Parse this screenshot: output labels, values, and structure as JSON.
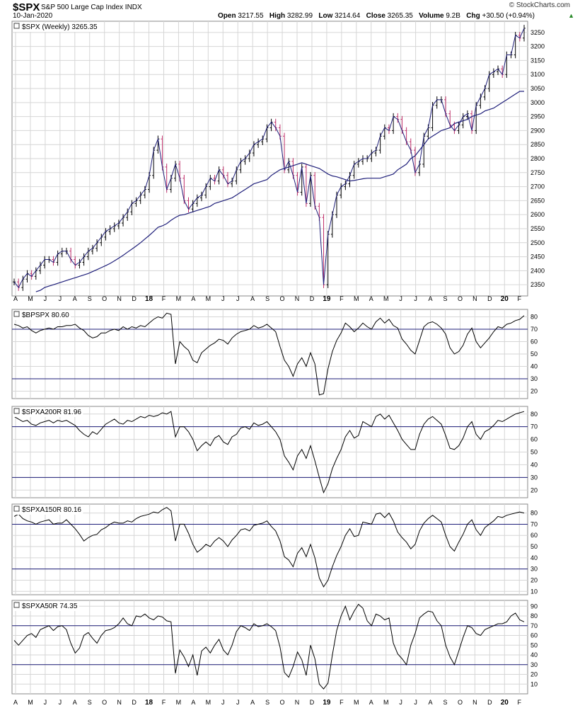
{
  "header": {
    "symbol": "$SPX",
    "index_name": "S&P 500 Large Cap Index INDX",
    "date": "10-Jan-2020",
    "open_label": "Open",
    "open": "3217.55",
    "high_label": "High",
    "high": "3282.99",
    "low_label": "Low",
    "low": "3214.64",
    "close_label": "Close",
    "close": "3265.35",
    "volume_label": "Volume",
    "volume": "9.2B",
    "chg_label": "Chg",
    "chg": "+30.50 (+0.94%)",
    "brand": "© StockCharts.com",
    "up_marker": "▲"
  },
  "colors": {
    "grid": "#d6d6d6",
    "up_bar": "#000000",
    "down_bar": "#c0306a",
    "close_line": "#1f1f7a",
    "ma": "#1f1f7a",
    "ref_line": "#1f1f7a",
    "indicator": "#000000"
  },
  "chart_data": [
    {
      "type": "line",
      "title": "$SPX (Weekly) 3265.35",
      "series": [
        {
          "name": "$SPX (Weekly)",
          "values": [
            2360,
            2340,
            2370,
            2390,
            2380,
            2400,
            2420,
            2440,
            2440,
            2430,
            2460,
            2470,
            2470,
            2440,
            2420,
            2430,
            2450,
            2470,
            2480,
            2500,
            2520,
            2540,
            2550,
            2560,
            2570,
            2590,
            2610,
            2640,
            2650,
            2670,
            2690,
            2740,
            2830,
            2870,
            2770,
            2690,
            2730,
            2780,
            2730,
            2650,
            2620,
            2640,
            2660,
            2670,
            2700,
            2730,
            2720,
            2760,
            2740,
            2710,
            2720,
            2760,
            2790,
            2800,
            2820,
            2850,
            2860,
            2870,
            2910,
            2930,
            2910,
            2880,
            2760,
            2790,
            2740,
            2680,
            2770,
            2640,
            2740,
            2630,
            2590,
            2350,
            2530,
            2600,
            2670,
            2700,
            2710,
            2740,
            2780,
            2790,
            2800,
            2800,
            2820,
            2830,
            2880,
            2910,
            2900,
            2950,
            2940,
            2900,
            2860,
            2830,
            2750,
            2780,
            2880,
            2910,
            2990,
            3010,
            3010,
            2960,
            2920,
            2900,
            2920,
            2950,
            2960,
            2900,
            2990,
            3020,
            3050,
            3100,
            3110,
            3120,
            3100,
            3170,
            3170,
            3240,
            3230,
            3265
          ]
        },
        {
          "name": "MA",
          "values": [
            2280,
            2290,
            2300,
            2310,
            2320,
            2325,
            2330,
            2340,
            2345,
            2350,
            2355,
            2360,
            2365,
            2370,
            2375,
            2380,
            2385,
            2390,
            2397,
            2404,
            2411,
            2418,
            2426,
            2435,
            2445,
            2455,
            2466,
            2477,
            2488,
            2500,
            2513,
            2526,
            2540,
            2555,
            2560,
            2568,
            2580,
            2590,
            2598,
            2600,
            2605,
            2610,
            2615,
            2620,
            2625,
            2630,
            2640,
            2645,
            2650,
            2655,
            2660,
            2670,
            2680,
            2690,
            2700,
            2710,
            2715,
            2720,
            2725,
            2740,
            2750,
            2760,
            2765,
            2770,
            2775,
            2780,
            2785,
            2780,
            2775,
            2770,
            2765,
            2755,
            2745,
            2738,
            2735,
            2730,
            2725,
            2720,
            2722,
            2725,
            2728,
            2730,
            2730,
            2730,
            2730,
            2735,
            2740,
            2745,
            2760,
            2770,
            2780,
            2800,
            2810,
            2830,
            2850,
            2870,
            2880,
            2890,
            2900,
            2905,
            2910,
            2925,
            2930,
            2935,
            2940,
            2950,
            2955,
            2960,
            2970,
            2975,
            2980,
            2990,
            3000,
            3010,
            3020,
            3030,
            3040,
            3040
          ]
        }
      ],
      "ylim": [
        2310,
        3290
      ],
      "yticks": [
        2350,
        2400,
        2450,
        2500,
        2550,
        2600,
        2650,
        2700,
        2750,
        2800,
        2850,
        2900,
        2950,
        3000,
        3050,
        3100,
        3150,
        3200,
        3250
      ]
    },
    {
      "type": "line",
      "title": "$BPSPX 80.60",
      "series": [
        {
          "name": "$BPSPX",
          "values": [
            74,
            73,
            71,
            72,
            69,
            67,
            69,
            70,
            71,
            70,
            72,
            72,
            73,
            73,
            74,
            71,
            69,
            65,
            63,
            64,
            67,
            67,
            69,
            70,
            69,
            72,
            70,
            72,
            71,
            73,
            72,
            75,
            78,
            80,
            79,
            83,
            82,
            42,
            60,
            56,
            53,
            45,
            43,
            51,
            54,
            57,
            59,
            62,
            61,
            58,
            63,
            66,
            68,
            69,
            70,
            73,
            71,
            72,
            74,
            71,
            68,
            56,
            45,
            40,
            32,
            42,
            47,
            40,
            51,
            42,
            17,
            18,
            38,
            52,
            61,
            67,
            75,
            72,
            68,
            71,
            75,
            72,
            70,
            76,
            79,
            75,
            78,
            73,
            71,
            62,
            58,
            53,
            50,
            61,
            72,
            75,
            76,
            74,
            71,
            66,
            55,
            50,
            52,
            57,
            66,
            71,
            60,
            55,
            59,
            63,
            68,
            72,
            71,
            74,
            75,
            77,
            78,
            81
          ]
        }
      ],
      "ylim": [
        14,
        86
      ],
      "yticks": [
        20,
        30,
        40,
        50,
        60,
        70,
        80
      ],
      "reference_lines": [
        70,
        30
      ]
    },
    {
      "type": "line",
      "title": "$SPXA200R 81.96",
      "series": [
        {
          "name": "$SPXA200R",
          "values": [
            78,
            76,
            74,
            75,
            72,
            71,
            73,
            74,
            75,
            73,
            75,
            74,
            75,
            73,
            71,
            67,
            64,
            62,
            66,
            64,
            68,
            72,
            74,
            76,
            73,
            72,
            75,
            74,
            76,
            78,
            77,
            79,
            78,
            79,
            81,
            80,
            82,
            62,
            70,
            70,
            66,
            60,
            51,
            55,
            58,
            55,
            61,
            63,
            58,
            56,
            62,
            64,
            69,
            70,
            68,
            73,
            71,
            72,
            74,
            70,
            66,
            60,
            47,
            42,
            36,
            47,
            52,
            45,
            55,
            43,
            30,
            18,
            25,
            37,
            45,
            52,
            62,
            67,
            61,
            63,
            74,
            72,
            70,
            78,
            80,
            76,
            79,
            73,
            67,
            60,
            56,
            52,
            52,
            64,
            72,
            76,
            78,
            75,
            72,
            63,
            53,
            52,
            55,
            61,
            70,
            74,
            64,
            60,
            66,
            68,
            71,
            75,
            74,
            76,
            78,
            80,
            81,
            82
          ]
        }
      ],
      "ylim": [
        14,
        86
      ],
      "yticks": [
        20,
        30,
        40,
        50,
        60,
        70,
        80
      ],
      "reference_lines": [
        70,
        30
      ]
    },
    {
      "type": "line",
      "title": "$SPXA150R 80.16",
      "series": [
        {
          "name": "$SPXA150R",
          "values": [
            77,
            79,
            75,
            73,
            72,
            70,
            72,
            73,
            74,
            70,
            71,
            71,
            74,
            70,
            66,
            61,
            55,
            58,
            60,
            61,
            65,
            67,
            70,
            72,
            71,
            71,
            73,
            72,
            75,
            77,
            78,
            79,
            81,
            80,
            83,
            85,
            82,
            55,
            70,
            70,
            62,
            52,
            45,
            48,
            52,
            50,
            55,
            58,
            55,
            50,
            56,
            60,
            65,
            66,
            64,
            69,
            70,
            71,
            73,
            68,
            64,
            55,
            41,
            38,
            32,
            44,
            49,
            41,
            52,
            40,
            22,
            14,
            20,
            32,
            42,
            50,
            60,
            66,
            59,
            60,
            72,
            71,
            70,
            79,
            80,
            76,
            80,
            73,
            63,
            58,
            54,
            48,
            52,
            64,
            71,
            75,
            78,
            75,
            72,
            60,
            50,
            46,
            54,
            61,
            70,
            74,
            65,
            60,
            67,
            70,
            73,
            77,
            76,
            78,
            79,
            80,
            81,
            80
          ]
        }
      ],
      "ylim": [
        7,
        88
      ],
      "yticks": [
        10,
        20,
        30,
        40,
        50,
        60,
        70,
        80
      ],
      "reference_lines": [
        70,
        30
      ]
    },
    {
      "type": "line",
      "title": "$SPXA50R 74.35",
      "series": [
        {
          "name": "$SPXA50R",
          "values": [
            55,
            50,
            55,
            60,
            62,
            58,
            66,
            68,
            70,
            65,
            69,
            70,
            66,
            52,
            42,
            47,
            60,
            63,
            57,
            52,
            60,
            65,
            66,
            68,
            72,
            78,
            72,
            70,
            80,
            79,
            82,
            78,
            76,
            80,
            79,
            75,
            74,
            21,
            45,
            38,
            28,
            40,
            19,
            44,
            48,
            42,
            50,
            56,
            45,
            40,
            50,
            64,
            70,
            68,
            65,
            72,
            69,
            70,
            72,
            69,
            65,
            48,
            22,
            17,
            28,
            43,
            35,
            19,
            50,
            36,
            10,
            5,
            11,
            40,
            65,
            80,
            90,
            76,
            85,
            92,
            88,
            75,
            70,
            82,
            80,
            76,
            78,
            52,
            41,
            36,
            30,
            50,
            62,
            78,
            82,
            85,
            84,
            75,
            70,
            50,
            38,
            30,
            44,
            58,
            70,
            68,
            62,
            60,
            66,
            68,
            70,
            72,
            72,
            74,
            80,
            83,
            76,
            74
          ]
        }
      ],
      "ylim": [
        0,
        96
      ],
      "yticks": [
        10,
        20,
        30,
        40,
        50,
        60,
        70,
        80,
        90
      ],
      "reference_lines": [
        70,
        30
      ]
    }
  ],
  "x_axis": {
    "labels": [
      "A",
      "M",
      "J",
      "J",
      "A",
      "S",
      "O",
      "N",
      "D",
      "18",
      "F",
      "M",
      "A",
      "M",
      "J",
      "J",
      "A",
      "S",
      "O",
      "N",
      "D",
      "19",
      "F",
      "M",
      "A",
      "M",
      "J",
      "J",
      "A",
      "S",
      "O",
      "N",
      "D",
      "20",
      "F"
    ],
    "bold": [
      "18",
      "19",
      "20"
    ]
  }
}
